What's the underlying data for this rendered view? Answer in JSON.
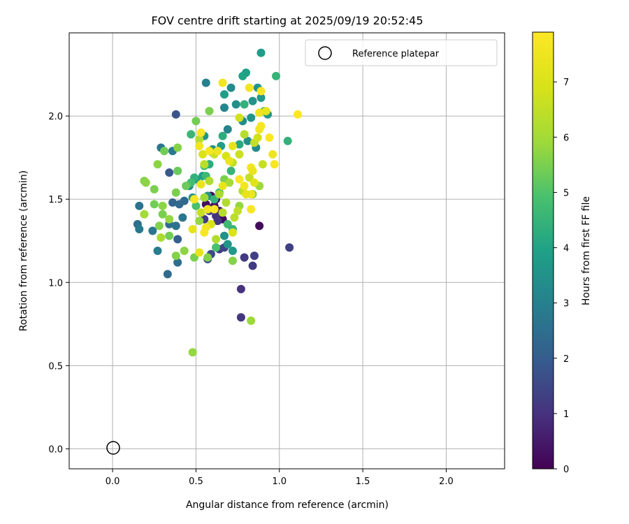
{
  "chart_data": {
    "type": "scatter",
    "title": "FOV centre drift starting at 2025/09/19 20:52:45",
    "xlabel": "Angular distance from reference (arcmin)",
    "ylabel": "Rotation from reference (arcmin)",
    "xlim": [
      -0.26,
      2.35
    ],
    "ylim": [
      -0.12,
      2.5
    ],
    "xticks": [
      "0.0",
      "0.5",
      "1.0",
      "1.5",
      "2.0"
    ],
    "xtick_values": [
      0.0,
      0.5,
      1.0,
      1.5,
      2.0
    ],
    "yticks": [
      "0.0",
      "0.5",
      "1.0",
      "1.5",
      "2.0"
    ],
    "ytick_values": [
      0.0,
      0.5,
      1.0,
      1.5,
      2.0
    ],
    "grid": true,
    "legend": {
      "position": "top-right",
      "entries": [
        "Reference platepar"
      ]
    },
    "reference_point": {
      "x": 0.0,
      "y": 0.0,
      "marker": "open-circle",
      "color": "#000000"
    },
    "colorbar": {
      "label": "Hours from first FF file",
      "range": [
        0,
        7.9
      ],
      "ticks": [
        "0",
        "1",
        "2",
        "3",
        "4",
        "5",
        "6",
        "7"
      ],
      "tick_values": [
        0,
        1,
        2,
        3,
        4,
        5,
        6,
        7
      ],
      "colormap": "viridis"
    },
    "points": [
      [
        0.62,
        1.5,
        0.2
      ],
      [
        0.66,
        1.38,
        0.2
      ],
      [
        0.61,
        1.46,
        0.3
      ],
      [
        0.64,
        1.43,
        0.4
      ],
      [
        0.59,
        1.52,
        0.2
      ],
      [
        0.56,
        1.47,
        0.3
      ],
      [
        0.88,
        1.34,
        0.2
      ],
      [
        0.77,
        0.96,
        1.0
      ],
      [
        0.77,
        0.79,
        1.1
      ],
      [
        0.84,
        1.1,
        1.2
      ],
      [
        0.79,
        1.15,
        1.2
      ],
      [
        0.85,
        1.16,
        1.3
      ],
      [
        1.06,
        1.21,
        1.3
      ],
      [
        0.64,
        1.2,
        1.2
      ],
      [
        0.67,
        1.21,
        1.4
      ],
      [
        0.59,
        1.17,
        1.5
      ],
      [
        0.62,
        1.4,
        1.0
      ],
      [
        0.63,
        1.37,
        1.1
      ],
      [
        0.58,
        1.43,
        1.3
      ],
      [
        0.55,
        1.38,
        1.2
      ],
      [
        0.57,
        1.14,
        1.6
      ],
      [
        0.38,
        2.01,
        1.8
      ],
      [
        0.34,
        1.66,
        1.9
      ],
      [
        0.39,
        1.26,
        2.1
      ],
      [
        0.33,
        1.05,
        2.4
      ],
      [
        0.36,
        1.48,
        2.2
      ],
      [
        0.43,
        1.49,
        2.3
      ],
      [
        0.39,
        1.12,
        2.5
      ],
      [
        0.42,
        1.39,
        2.7
      ],
      [
        0.38,
        1.34,
        2.6
      ],
      [
        0.36,
        1.79,
        2.8
      ],
      [
        0.29,
        1.81,
        2.7
      ],
      [
        0.27,
        1.19,
        2.9
      ],
      [
        0.24,
        1.31,
        2.7
      ],
      [
        0.15,
        1.35,
        2.5
      ],
      [
        0.16,
        1.46,
        2.6
      ],
      [
        0.16,
        1.32,
        2.8
      ],
      [
        0.34,
        1.35,
        2.5
      ],
      [
        0.4,
        1.47,
        2.3
      ],
      [
        0.56,
        2.2,
        3.0
      ],
      [
        0.69,
        1.92,
        3.1
      ],
      [
        0.67,
        2.05,
        3.2
      ],
      [
        0.71,
        2.17,
        3.3
      ],
      [
        0.74,
        2.07,
        3.4
      ],
      [
        0.78,
        1.97,
        3.3
      ],
      [
        0.81,
        1.85,
        3.4
      ],
      [
        0.84,
        2.09,
        3.5
      ],
      [
        0.87,
        2.17,
        3.6
      ],
      [
        0.89,
        2.38,
        3.8
      ],
      [
        0.93,
        2.01,
        3.7
      ],
      [
        0.83,
        1.99,
        3.6
      ],
      [
        0.86,
        1.81,
        3.3
      ],
      [
        0.8,
        2.26,
        3.9
      ],
      [
        0.78,
        2.24,
        4.0
      ],
      [
        0.89,
        2.11,
        3.7
      ],
      [
        0.67,
        2.13,
        3.9
      ],
      [
        0.65,
        1.82,
        3.8
      ],
      [
        0.6,
        1.8,
        3.5
      ],
      [
        0.55,
        1.88,
        3.6
      ],
      [
        0.48,
        1.51,
        3.7
      ],
      [
        0.46,
        1.58,
        3.4
      ],
      [
        0.5,
        1.62,
        3.8
      ],
      [
        0.54,
        1.64,
        3.9
      ],
      [
        0.57,
        1.52,
        3.6
      ],
      [
        0.69,
        1.23,
        3.6
      ],
      [
        0.72,
        1.19,
        3.7
      ],
      [
        0.67,
        1.28,
        3.5
      ],
      [
        0.98,
        2.24,
        4.5
      ],
      [
        1.05,
        1.85,
        4.4
      ],
      [
        0.76,
        1.83,
        4.2
      ],
      [
        0.79,
        2.07,
        4.4
      ],
      [
        0.91,
        2.03,
        4.6
      ],
      [
        0.47,
        1.89,
        4.6
      ],
      [
        0.49,
        1.63,
        4.4
      ],
      [
        0.56,
        1.64,
        4.7
      ],
      [
        0.58,
        1.71,
        4.3
      ],
      [
        0.6,
        1.78,
        4.2
      ],
      [
        0.66,
        1.88,
        4.3
      ],
      [
        0.71,
        1.67,
        4.5
      ],
      [
        0.64,
        1.54,
        4.8
      ],
      [
        0.69,
        1.35,
        4.7
      ],
      [
        0.72,
        1.32,
        4.5
      ],
      [
        0.62,
        1.21,
        4.9
      ],
      [
        0.61,
        1.5,
        4.5
      ],
      [
        0.55,
        1.7,
        4.8
      ],
      [
        0.5,
        1.46,
        4.9
      ],
      [
        0.47,
        1.6,
        4.8
      ],
      [
        0.5,
        1.97,
        5.4
      ],
      [
        0.58,
        2.03,
        5.5
      ],
      [
        0.27,
        1.71,
        5.7
      ],
      [
        0.31,
        1.79,
        5.4
      ],
      [
        0.39,
        1.81,
        5.6
      ],
      [
        0.39,
        1.67,
        5.3
      ],
      [
        0.19,
        1.61,
        5.6
      ],
      [
        0.2,
        1.6,
        5.7
      ],
      [
        0.25,
        1.56,
        5.5
      ],
      [
        0.25,
        1.47,
        5.4
      ],
      [
        0.3,
        1.46,
        5.7
      ],
      [
        0.3,
        1.41,
        5.5
      ],
      [
        0.28,
        1.34,
        5.6
      ],
      [
        0.34,
        1.38,
        5.8
      ],
      [
        0.34,
        1.28,
        5.4
      ],
      [
        0.38,
        1.54,
        5.5
      ],
      [
        0.38,
        1.16,
        5.6
      ],
      [
        0.43,
        1.19,
        5.7
      ],
      [
        0.44,
        1.58,
        5.3
      ],
      [
        0.49,
        1.15,
        5.5
      ],
      [
        0.52,
        1.37,
        5.8
      ],
      [
        0.55,
        1.51,
        5.9
      ],
      [
        0.57,
        1.15,
        5.6
      ],
      [
        0.67,
        1.62,
        5.5
      ],
      [
        0.72,
        1.13,
        5.6
      ],
      [
        0.76,
        1.46,
        5.8
      ],
      [
        0.84,
        1.53,
        5.7
      ],
      [
        0.88,
        1.58,
        5.9
      ],
      [
        0.48,
        0.58,
        5.8
      ],
      [
        0.83,
        0.77,
        5.9
      ],
      [
        0.19,
        1.41,
        6.0
      ],
      [
        0.29,
        1.27,
        6.1
      ],
      [
        0.52,
        1.86,
        6.3
      ],
      [
        0.55,
        1.71,
        6.4
      ],
      [
        0.58,
        1.61,
        6.2
      ],
      [
        0.64,
        1.53,
        6.1
      ],
      [
        0.66,
        1.42,
        6.3
      ],
      [
        0.68,
        1.48,
        6.2
      ],
      [
        0.7,
        1.6,
        6.0
      ],
      [
        0.73,
        1.39,
        6.4
      ],
      [
        0.75,
        1.43,
        6.5
      ],
      [
        0.78,
        1.55,
        6.4
      ],
      [
        0.82,
        1.63,
        6.6
      ],
      [
        0.79,
        1.89,
        6.3
      ],
      [
        0.85,
        1.84,
        6.5
      ],
      [
        0.9,
        1.71,
        6.6
      ],
      [
        0.87,
        1.87,
        6.8
      ],
      [
        0.76,
        1.77,
        6.7
      ],
      [
        0.72,
        1.72,
        6.5
      ],
      [
        0.68,
        1.76,
        6.9
      ],
      [
        0.61,
        1.77,
        6.7
      ],
      [
        0.62,
        1.26,
        6.2
      ],
      [
        0.53,
        1.42,
        6.6
      ],
      [
        0.54,
        1.77,
        7.0
      ],
      [
        0.59,
        1.35,
        6.9
      ],
      [
        0.72,
        1.3,
        7.0
      ],
      [
        0.76,
        1.99,
        6.8
      ],
      [
        0.66,
        2.2,
        7.6
      ],
      [
        0.82,
        2.17,
        7.6
      ],
      [
        0.89,
        2.15,
        7.8
      ],
      [
        0.88,
        2.02,
        7.5
      ],
      [
        0.92,
        2.03,
        7.3
      ],
      [
        0.89,
        1.94,
        7.7
      ],
      [
        0.88,
        1.92,
        7.6
      ],
      [
        0.94,
        1.87,
        7.9
      ],
      [
        0.96,
        1.77,
        7.5
      ],
      [
        0.97,
        1.71,
        7.7
      ],
      [
        1.11,
        2.01,
        7.9
      ],
      [
        0.83,
        1.69,
        7.6
      ],
      [
        0.84,
        1.67,
        7.4
      ],
      [
        0.85,
        1.6,
        7.2
      ],
      [
        0.83,
        1.53,
        7.5
      ],
      [
        0.8,
        1.53,
        7.3
      ],
      [
        0.79,
        1.58,
        7.6
      ],
      [
        0.76,
        1.62,
        7.8
      ],
      [
        0.72,
        1.82,
        7.3
      ],
      [
        0.7,
        1.73,
        7.4
      ],
      [
        0.63,
        1.79,
        7.5
      ],
      [
        0.58,
        1.79,
        7.7
      ],
      [
        0.53,
        1.9,
        7.8
      ],
      [
        0.52,
        1.82,
        7.6
      ],
      [
        0.53,
        1.59,
        7.4
      ],
      [
        0.49,
        1.5,
        7.7
      ],
      [
        0.57,
        1.44,
        7.5
      ],
      [
        0.61,
        1.44,
        7.8
      ],
      [
        0.56,
        1.33,
        7.6
      ],
      [
        0.55,
        1.3,
        7.7
      ],
      [
        0.48,
        1.32,
        7.3
      ],
      [
        0.52,
        1.18,
        7.4
      ],
      [
        0.83,
        1.44,
        7.8
      ],
      [
        0.66,
        1.58,
        7.3
      ]
    ]
  }
}
